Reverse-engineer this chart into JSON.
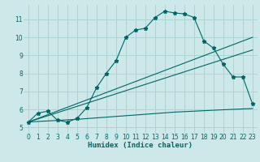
{
  "bg_color": "#cce8e8",
  "grid_color": "#aad4d4",
  "line_color": "#006666",
  "xlabel": "Humidex (Indice chaleur)",
  "xlim": [
    -0.5,
    23.5
  ],
  "ylim": [
    4.7,
    11.8
  ],
  "xticks": [
    0,
    1,
    2,
    3,
    4,
    5,
    6,
    7,
    8,
    9,
    10,
    11,
    12,
    13,
    14,
    15,
    16,
    17,
    18,
    19,
    20,
    21,
    22,
    23
  ],
  "yticks": [
    5,
    6,
    7,
    8,
    9,
    10,
    11
  ],
  "main_series": [
    [
      0,
      5.3
    ],
    [
      1,
      5.8
    ],
    [
      2,
      5.9
    ],
    [
      3,
      5.4
    ],
    [
      4,
      5.3
    ],
    [
      5,
      5.5
    ],
    [
      6,
      6.1
    ],
    [
      7,
      7.2
    ],
    [
      8,
      8.0
    ],
    [
      9,
      8.7
    ],
    [
      10,
      10.0
    ],
    [
      11,
      10.4
    ],
    [
      12,
      10.5
    ],
    [
      13,
      11.1
    ],
    [
      14,
      11.45
    ],
    [
      15,
      11.35
    ],
    [
      16,
      11.3
    ],
    [
      17,
      11.1
    ],
    [
      18,
      9.8
    ],
    [
      19,
      9.4
    ],
    [
      20,
      8.5
    ],
    [
      21,
      7.8
    ],
    [
      22,
      7.8
    ],
    [
      23,
      6.3
    ]
  ],
  "line2_series": [
    [
      0,
      5.3
    ],
    [
      23,
      10.0
    ]
  ],
  "line3_series": [
    [
      0,
      5.3
    ],
    [
      23,
      9.3
    ]
  ],
  "flat_series": [
    [
      0,
      5.3
    ],
    [
      5,
      5.45
    ],
    [
      10,
      5.65
    ],
    [
      15,
      5.85
    ],
    [
      20,
      5.98
    ],
    [
      23,
      6.05
    ]
  ]
}
